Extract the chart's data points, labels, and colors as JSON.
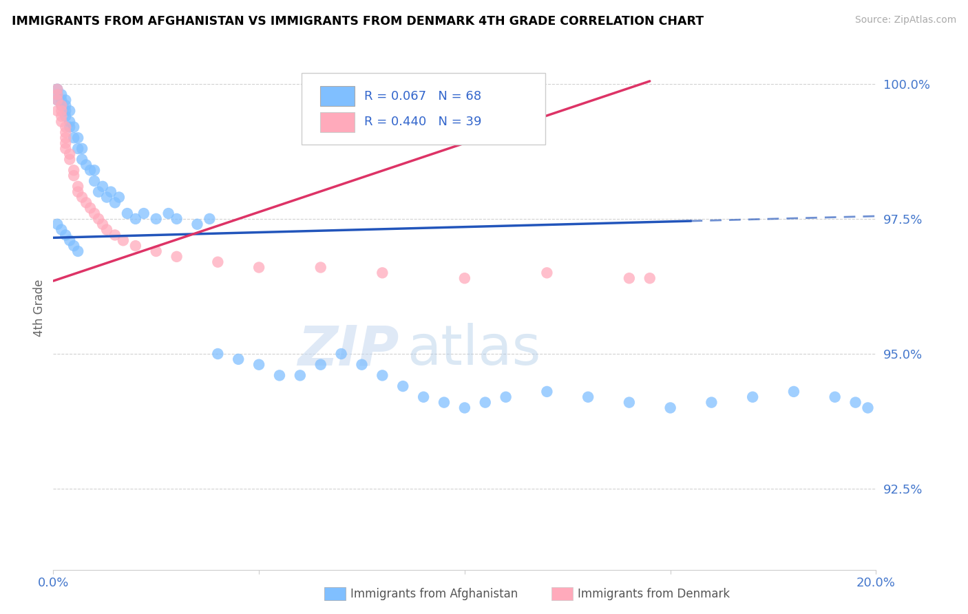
{
  "title": "IMMIGRANTS FROM AFGHANISTAN VS IMMIGRANTS FROM DENMARK 4TH GRADE CORRELATION CHART",
  "source": "Source: ZipAtlas.com",
  "ylabel": "4th Grade",
  "xlim": [
    0.0,
    0.2
  ],
  "ylim": [
    0.91,
    1.007
  ],
  "yticks": [
    0.925,
    0.95,
    0.975,
    1.0
  ],
  "ytick_labels": [
    "92.5%",
    "95.0%",
    "97.5%",
    "100.0%"
  ],
  "legend_R_blue": "R = 0.067",
  "legend_N_blue": "N = 68",
  "legend_R_pink": "R = 0.440",
  "legend_N_pink": "N = 39",
  "legend_label_blue": "Immigrants from Afghanistan",
  "legend_label_pink": "Immigrants from Denmark",
  "dot_color_blue": "#80bfff",
  "dot_color_pink": "#ffaabb",
  "line_color_blue": "#2255bb",
  "line_color_pink": "#dd3366",
  "watermark_zip": "ZIP",
  "watermark_atlas": "atlas",
  "blue_line_x0": 0.0,
  "blue_line_y0": 0.9715,
  "blue_line_x1": 0.2,
  "blue_line_y1": 0.9755,
  "blue_line_solid_end": 0.155,
  "pink_line_x0": 0.0,
  "pink_line_y0": 0.9635,
  "pink_line_x1": 0.145,
  "pink_line_y1": 1.0005,
  "blue_scatter_x": [
    0.001,
    0.001,
    0.001,
    0.002,
    0.002,
    0.002,
    0.003,
    0.003,
    0.003,
    0.003,
    0.004,
    0.004,
    0.004,
    0.005,
    0.005,
    0.006,
    0.006,
    0.007,
    0.007,
    0.008,
    0.009,
    0.01,
    0.01,
    0.011,
    0.012,
    0.013,
    0.014,
    0.015,
    0.016,
    0.018,
    0.02,
    0.022,
    0.025,
    0.028,
    0.03,
    0.035,
    0.038,
    0.04,
    0.045,
    0.05,
    0.055,
    0.06,
    0.065,
    0.07,
    0.075,
    0.08,
    0.085,
    0.09,
    0.095,
    0.1,
    0.105,
    0.11,
    0.12,
    0.13,
    0.14,
    0.15,
    0.16,
    0.17,
    0.18,
    0.19,
    0.195,
    0.198,
    0.001,
    0.002,
    0.003,
    0.004,
    0.005,
    0.006
  ],
  "blue_scatter_y": [
    0.999,
    0.998,
    0.997,
    0.996,
    0.997,
    0.998,
    0.994,
    0.995,
    0.996,
    0.997,
    0.992,
    0.993,
    0.995,
    0.99,
    0.992,
    0.988,
    0.99,
    0.986,
    0.988,
    0.985,
    0.984,
    0.982,
    0.984,
    0.98,
    0.981,
    0.979,
    0.98,
    0.978,
    0.979,
    0.976,
    0.975,
    0.976,
    0.975,
    0.976,
    0.975,
    0.974,
    0.975,
    0.95,
    0.949,
    0.948,
    0.946,
    0.946,
    0.948,
    0.95,
    0.948,
    0.946,
    0.944,
    0.942,
    0.941,
    0.94,
    0.941,
    0.942,
    0.943,
    0.942,
    0.941,
    0.94,
    0.941,
    0.942,
    0.943,
    0.942,
    0.941,
    0.94,
    0.974,
    0.973,
    0.972,
    0.971,
    0.97,
    0.969
  ],
  "pink_scatter_x": [
    0.001,
    0.001,
    0.001,
    0.001,
    0.002,
    0.002,
    0.002,
    0.002,
    0.003,
    0.003,
    0.003,
    0.003,
    0.003,
    0.004,
    0.004,
    0.005,
    0.005,
    0.006,
    0.006,
    0.007,
    0.008,
    0.009,
    0.01,
    0.011,
    0.012,
    0.013,
    0.015,
    0.017,
    0.02,
    0.025,
    0.03,
    0.04,
    0.05,
    0.065,
    0.08,
    0.1,
    0.12,
    0.14,
    0.145
  ],
  "pink_scatter_y": [
    0.999,
    0.998,
    0.997,
    0.995,
    0.996,
    0.995,
    0.994,
    0.993,
    0.992,
    0.991,
    0.99,
    0.989,
    0.988,
    0.987,
    0.986,
    0.984,
    0.983,
    0.981,
    0.98,
    0.979,
    0.978,
    0.977,
    0.976,
    0.975,
    0.974,
    0.973,
    0.972,
    0.971,
    0.97,
    0.969,
    0.968,
    0.967,
    0.966,
    0.966,
    0.965,
    0.964,
    0.965,
    0.964,
    0.964
  ]
}
